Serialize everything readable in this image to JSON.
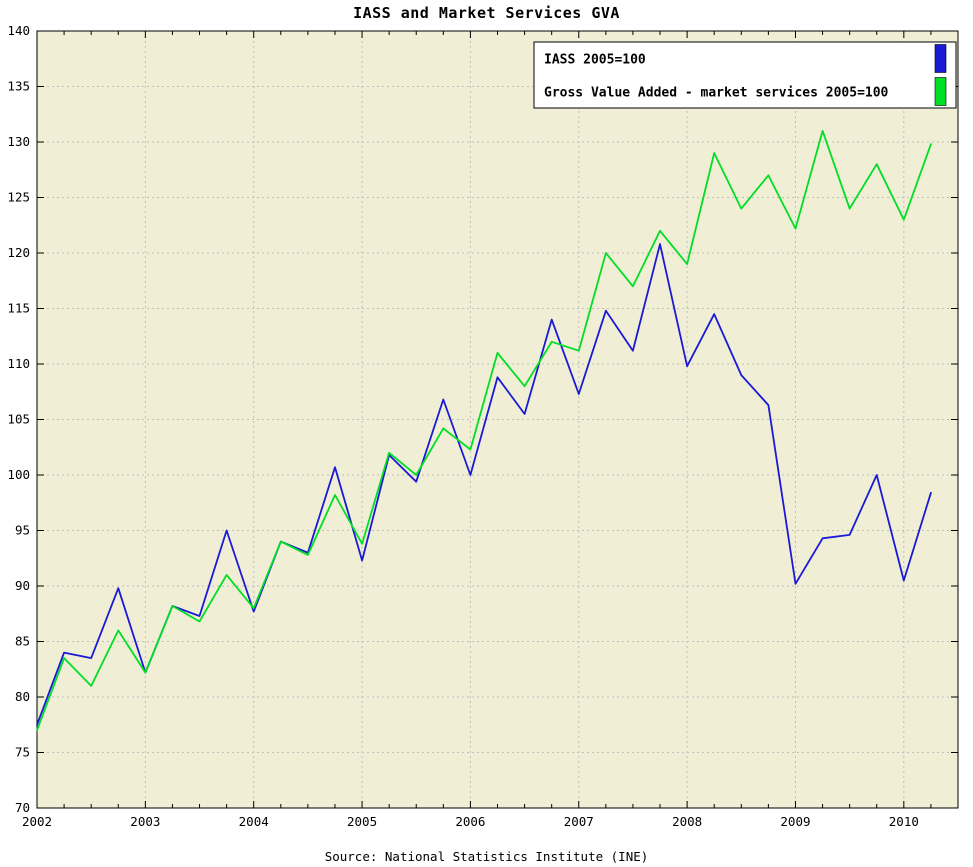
{
  "title": "IASS and Market Services GVA",
  "source": "Source: National Statistics Institute (INE)",
  "chart_data": {
    "type": "line",
    "title": "IASS and Market Services GVA",
    "xlabel": "",
    "ylabel": "",
    "source": "Source: National Statistics Institute (INE)",
    "xlim": [
      2002,
      2010.5
    ],
    "ylim": [
      70,
      140
    ],
    "x_ticks": [
      2002,
      2003,
      2004,
      2005,
      2006,
      2007,
      2008,
      2009,
      2010
    ],
    "y_ticks": [
      70,
      75,
      80,
      85,
      90,
      95,
      100,
      105,
      110,
      115,
      120,
      125,
      130,
      135,
      140
    ],
    "grid": true,
    "legend_position": "top-right",
    "plot_background": "#f1eed6",
    "grid_color": "#bfbfbf",
    "x": [
      2002.0,
      2002.25,
      2002.5,
      2002.75,
      2003.0,
      2003.25,
      2003.5,
      2003.75,
      2004.0,
      2004.25,
      2004.5,
      2004.75,
      2005.0,
      2005.25,
      2005.5,
      2005.75,
      2006.0,
      2006.25,
      2006.5,
      2006.75,
      2007.0,
      2007.25,
      2007.5,
      2007.75,
      2008.0,
      2008.25,
      2008.5,
      2008.75,
      2009.0,
      2009.25,
      2009.5,
      2009.75,
      2010.0,
      2010.25
    ],
    "series": [
      {
        "name": "IASS 2005=100",
        "color": "#1a1ad6",
        "values": [
          77.5,
          84.0,
          83.5,
          89.8,
          82.2,
          88.2,
          87.3,
          95.0,
          87.7,
          94.0,
          93.0,
          100.7,
          92.3,
          101.8,
          99.4,
          106.8,
          100.0,
          108.8,
          105.5,
          114.0,
          107.3,
          114.8,
          111.2,
          120.8,
          109.8,
          114.5,
          109.0,
          106.3,
          90.2,
          94.3,
          94.6,
          100.0,
          90.5,
          98.4
        ]
      },
      {
        "name": "Gross Value Added - market services 2005=100",
        "color": "#00df25",
        "values": [
          77.0,
          83.5,
          81.0,
          86.0,
          82.2,
          88.2,
          86.8,
          91.0,
          88.0,
          94.0,
          92.8,
          98.2,
          93.8,
          102.0,
          100.0,
          104.2,
          102.3,
          111.0,
          108.0,
          112.0,
          111.2,
          120.0,
          117.0,
          122.0,
          119.0,
          129.0,
          124.0,
          127.0,
          122.2,
          131.0,
          124.0,
          128.0,
          123.0,
          129.8
        ]
      }
    ]
  }
}
